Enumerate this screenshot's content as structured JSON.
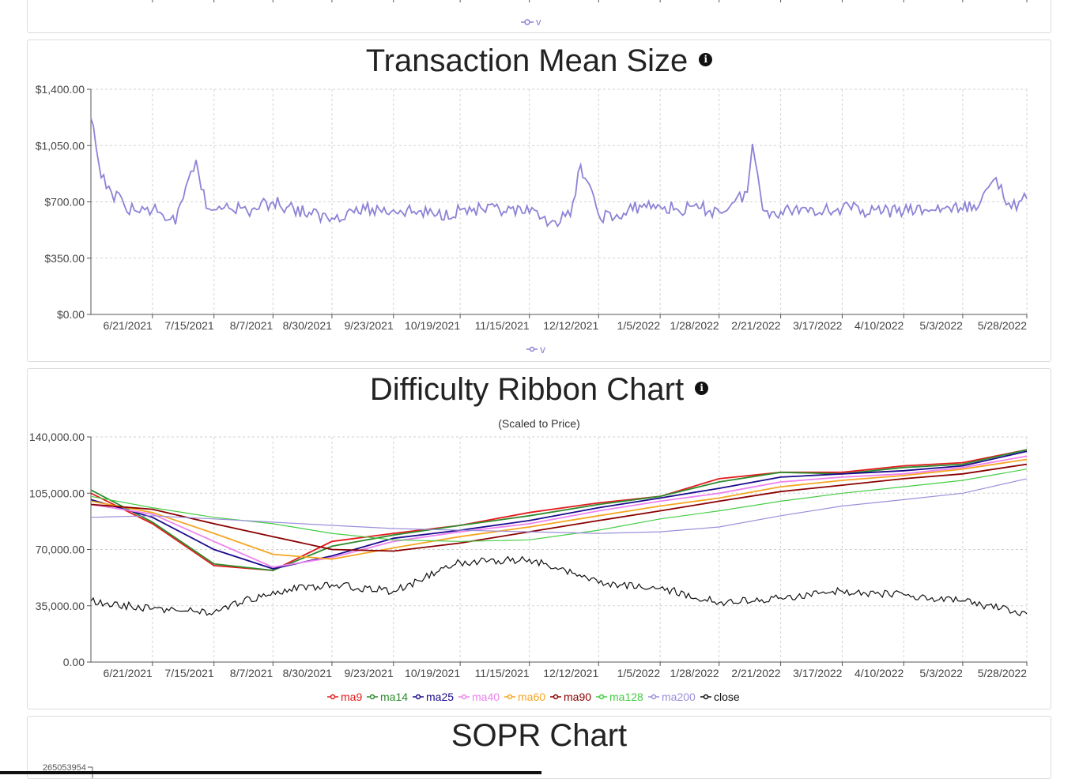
{
  "top_panel": {
    "legend": "v"
  },
  "tx_panel": {
    "title": "Transaction Mean Size",
    "info_icon": "info-icon"
  },
  "ribbon_panel": {
    "title": "Difficulty Ribbon Chart",
    "subtitle": "(Scaled to Price)",
    "info_icon": "info-icon"
  },
  "sopr_panel": {
    "title": "SOPR Chart",
    "partial_tick": "265053954"
  },
  "chart_data": [
    {
      "type": "line",
      "title": "Transaction Mean Size",
      "x_ticks": [
        "6/21/2021",
        "7/15/2021",
        "8/7/2021",
        "8/30/2021",
        "9/23/2021",
        "10/19/2021",
        "11/15/2021",
        "12/12/2021",
        "1/5/2022",
        "1/28/2022",
        "2/21/2022",
        "3/17/2022",
        "4/10/2022",
        "5/3/2022",
        "5/28/2022"
      ],
      "y_ticks": [
        "$0.00",
        "$350.00",
        "$700.00",
        "$1,050.00",
        "$1,400.00"
      ],
      "ylim": [
        0,
        1400
      ],
      "series": [
        {
          "name": "v",
          "color": "#8c83d6",
          "x": [
            "5/28/2021",
            "6/1/2021",
            "6/5/2021",
            "6/10/2021",
            "6/15/2021",
            "6/21/2021",
            "6/25/2021",
            "6/30/2021",
            "7/3/2021",
            "7/8/2021",
            "7/12/2021",
            "7/15/2021",
            "7/20/2021",
            "7/28/2021",
            "8/7/2021",
            "8/15/2021",
            "8/22/2021",
            "8/30/2021",
            "9/5/2021",
            "9/12/2021",
            "9/23/2021",
            "10/1/2021",
            "10/10/2021",
            "10/19/2021",
            "10/28/2021",
            "11/5/2021",
            "11/15/2021",
            "11/20/2021",
            "11/25/2021",
            "12/1/2021",
            "12/5/2021",
            "12/12/2021",
            "12/20/2021",
            "12/28/2021",
            "1/5/2022",
            "1/12/2022",
            "1/20/2022",
            "1/28/2022",
            "2/3/2022",
            "2/8/2022",
            "2/10/2022",
            "2/14/2022",
            "2/21/2022",
            "3/1/2022",
            "3/10/2022",
            "3/17/2022",
            "3/25/2022",
            "4/2/2022",
            "4/10/2022",
            "4/18/2022",
            "4/26/2022",
            "5/3/2022",
            "5/10/2022",
            "5/16/2022",
            "5/22/2022",
            "5/28/2022"
          ],
          "values": [
            1220,
            850,
            760,
            680,
            640,
            650,
            620,
            560,
            720,
            960,
            660,
            650,
            690,
            640,
            700,
            660,
            620,
            600,
            640,
            650,
            650,
            640,
            620,
            650,
            650,
            640,
            630,
            600,
            580,
            610,
            930,
            620,
            600,
            680,
            670,
            650,
            660,
            640,
            700,
            760,
            1060,
            650,
            640,
            660,
            650,
            660,
            650,
            640,
            640,
            650,
            660,
            650,
            700,
            850,
            660,
            720
          ]
        }
      ]
    },
    {
      "type": "line",
      "title": "Difficulty Ribbon Chart",
      "subtitle": "(Scaled to Price)",
      "x_ticks": [
        "6/21/2021",
        "7/15/2021",
        "8/7/2021",
        "8/30/2021",
        "9/23/2021",
        "10/19/2021",
        "11/15/2021",
        "12/12/2021",
        "1/5/2022",
        "1/28/2022",
        "2/21/2022",
        "3/17/2022",
        "4/10/2022",
        "5/3/2022",
        "5/28/2022"
      ],
      "y_ticks": [
        "0.00",
        "35,000.00",
        "70,000.00",
        "105,000.00",
        "140,000.00"
      ],
      "ylim": [
        0,
        140000
      ],
      "x": [
        "5/28/2021",
        "6/21/2021",
        "7/15/2021",
        "8/7/2021",
        "8/30/2021",
        "9/23/2021",
        "10/19/2021",
        "11/15/2021",
        "12/12/2021",
        "1/5/2022",
        "1/28/2022",
        "2/21/2022",
        "3/17/2022",
        "4/10/2022",
        "5/3/2022",
        "5/28/2022"
      ],
      "series": [
        {
          "name": "ma9",
          "color": "#e41a1c",
          "values": [
            105000,
            86000,
            60000,
            57000,
            75000,
            80000,
            85000,
            93000,
            99000,
            103000,
            114000,
            118000,
            118000,
            122000,
            124000,
            132000
          ]
        },
        {
          "name": "ma14",
          "color": "#2e8b2e",
          "values": [
            107000,
            87000,
            61000,
            57000,
            72000,
            79000,
            85000,
            91000,
            98000,
            103000,
            112000,
            118000,
            117000,
            121000,
            123000,
            132000
          ]
        },
        {
          "name": "ma25",
          "color": "#1a0a8c",
          "values": [
            101000,
            90000,
            70000,
            58000,
            66000,
            77000,
            82000,
            88000,
            96000,
            102000,
            108000,
            115000,
            117000,
            119000,
            122000,
            131000
          ]
        },
        {
          "name": "ma40",
          "color": "#ee82ee",
          "values": [
            98000,
            92000,
            75000,
            59000,
            65000,
            75000,
            81000,
            86000,
            94000,
            100000,
            105000,
            112000,
            115000,
            117000,
            121000,
            128000
          ]
        },
        {
          "name": "ma60",
          "color": "#f5a623",
          "values": [
            100000,
            93000,
            80000,
            67000,
            64000,
            71000,
            78000,
            84000,
            91000,
            97000,
            102000,
            109000,
            113000,
            116000,
            120000,
            126000
          ]
        },
        {
          "name": "ma90",
          "color": "#8b0000",
          "values": [
            98000,
            95000,
            86000,
            78000,
            70000,
            69000,
            74000,
            81000,
            88000,
            94000,
            100000,
            106000,
            110000,
            114000,
            117000,
            123000
          ]
        },
        {
          "name": "ma128",
          "color": "#44cc44",
          "values": [
            103000,
            96000,
            90000,
            86000,
            80000,
            76000,
            75000,
            76000,
            82000,
            89000,
            94000,
            100000,
            105000,
            109000,
            113000,
            120000
          ]
        },
        {
          "name": "ma200",
          "color": "#9b8fd9",
          "values": [
            90000,
            91000,
            89000,
            87000,
            85000,
            83000,
            82000,
            81000,
            80000,
            81000,
            84000,
            91000,
            97000,
            101000,
            105000,
            114000
          ]
        },
        {
          "name": "close",
          "color": "#111111",
          "values": [
            38000,
            33000,
            31000,
            44000,
            48000,
            44000,
            62000,
            64000,
            49000,
            46000,
            37000,
            40000,
            44000,
            42000,
            38000,
            30000
          ]
        }
      ]
    }
  ]
}
